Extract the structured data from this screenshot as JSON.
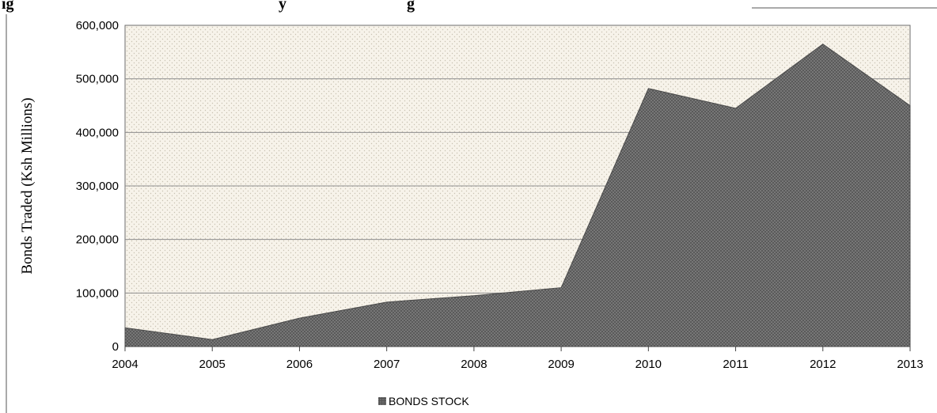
{
  "figure_title_fragment": "ig",
  "figure_title_fragment_2": "y",
  "figure_title_fragment_3": "g",
  "chart_data": {
    "type": "area",
    "x": [
      "2004",
      "2005",
      "2006",
      "2007",
      "2008",
      "2009",
      "2010",
      "2011",
      "2012",
      "2013"
    ],
    "series": [
      {
        "name": "BONDS STOCK",
        "values": [
          35000,
          13000,
          53000,
          83000,
          95000,
          110000,
          482000,
          445000,
          565000,
          450000
        ]
      }
    ],
    "ylabel": "Bonds Traded (Ksh Millions)",
    "xlabel": "",
    "ylim": [
      0,
      600000
    ],
    "yticks": [
      "0",
      "100,000",
      "200,000",
      "300,000",
      "400,000",
      "500,000",
      "600,000"
    ],
    "grid": true,
    "legend_position": "bottom-center",
    "colors": {
      "area": "#555555",
      "plot_bg": "#f6f2e9",
      "grid": "#8c8c8c"
    }
  }
}
